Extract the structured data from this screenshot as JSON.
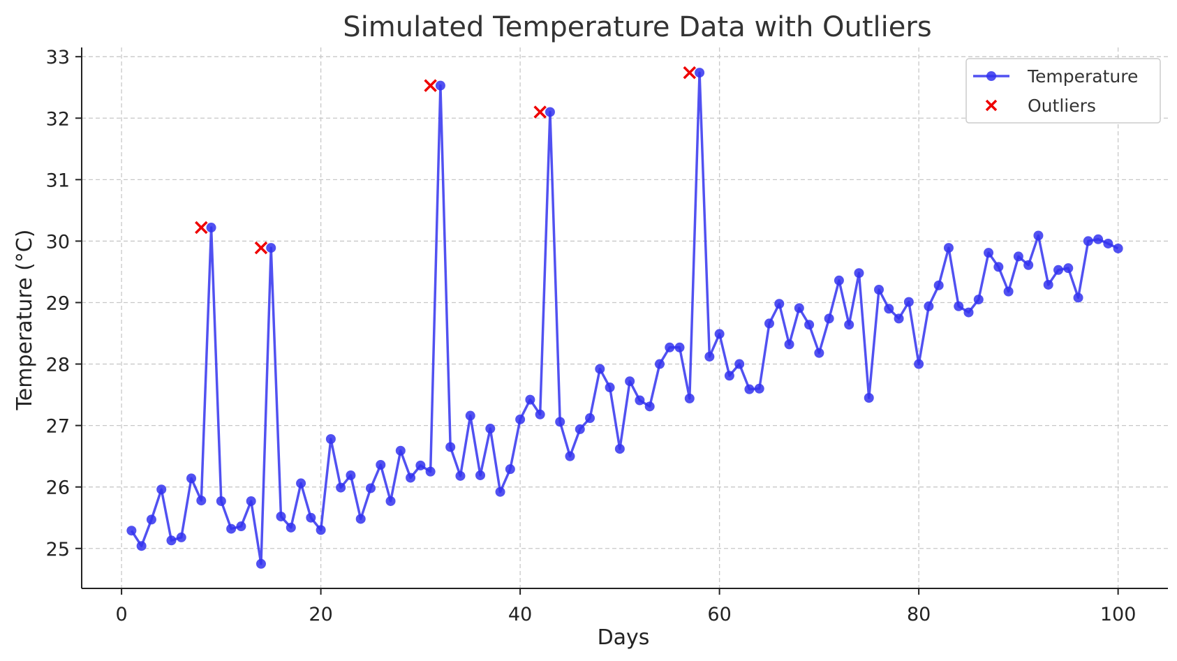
{
  "chart_data": {
    "type": "line",
    "title": "Simulated Temperature Data with Outliers",
    "xlabel": "Days",
    "ylabel": "Temperature (°C)",
    "xlim": [
      -4,
      105
    ],
    "ylim": [
      24.35,
      33.15
    ],
    "xticks": [
      0,
      20,
      40,
      60,
      80,
      100
    ],
    "yticks": [
      25,
      26,
      27,
      28,
      29,
      30,
      31,
      32,
      33
    ],
    "grid": true,
    "legend_position": "top-right",
    "colors": {
      "temperature": "#3333ee",
      "outliers": "#ee0000"
    },
    "series": [
      {
        "name": "Temperature",
        "marker": "circle",
        "x": [
          1,
          2,
          3,
          4,
          5,
          6,
          7,
          8,
          9,
          10,
          11,
          12,
          13,
          14,
          15,
          16,
          17,
          18,
          19,
          20,
          21,
          22,
          23,
          24,
          25,
          26,
          27,
          28,
          29,
          30,
          31,
          32,
          33,
          34,
          35,
          36,
          37,
          38,
          39,
          40,
          41,
          42,
          43,
          44,
          45,
          46,
          47,
          48,
          49,
          50,
          51,
          52,
          53,
          54,
          55,
          56,
          57,
          58,
          59,
          60,
          61,
          62,
          63,
          64,
          65,
          66,
          67,
          68,
          69,
          70,
          71,
          72,
          73,
          74,
          75,
          76,
          77,
          78,
          79,
          80,
          81,
          82,
          83,
          84,
          85,
          86,
          87,
          88,
          89,
          90,
          91,
          92,
          93,
          94,
          95,
          96,
          97,
          98,
          99,
          100
        ],
        "y": [
          25.29,
          25.04,
          25.47,
          25.96,
          25.13,
          25.18,
          26.14,
          25.78,
          30.22,
          25.77,
          25.32,
          25.36,
          25.77,
          24.75,
          29.89,
          25.52,
          25.34,
          26.06,
          25.5,
          25.3,
          26.78,
          25.99,
          26.19,
          25.48,
          25.98,
          26.36,
          25.77,
          26.59,
          26.15,
          26.35,
          26.25,
          32.53,
          26.65,
          26.18,
          27.16,
          26.19,
          26.95,
          25.92,
          26.29,
          27.1,
          27.42,
          27.18,
          32.1,
          27.06,
          26.5,
          26.94,
          27.12,
          27.92,
          27.62,
          26.62,
          27.72,
          27.41,
          27.31,
          28.0,
          28.27,
          28.27,
          27.44,
          32.74,
          28.12,
          28.49,
          27.81,
          28.0,
          27.59,
          27.6,
          28.66,
          28.98,
          28.32,
          28.91,
          28.64,
          28.18,
          28.74,
          29.36,
          28.64,
          29.48,
          27.45,
          29.21,
          28.9,
          28.74,
          29.01,
          28.0,
          28.94,
          29.28,
          29.89,
          28.94,
          28.84,
          29.05,
          29.81,
          29.58,
          29.18,
          29.75,
          29.61,
          30.09,
          29.29,
          29.53,
          29.56,
          29.08,
          30.0,
          30.03,
          29.96,
          29.88
        ]
      },
      {
        "name": "Outliers",
        "marker": "x",
        "x": [
          8,
          14,
          31,
          42,
          57
        ],
        "y": [
          30.22,
          29.89,
          32.53,
          32.1,
          32.74
        ]
      }
    ]
  }
}
